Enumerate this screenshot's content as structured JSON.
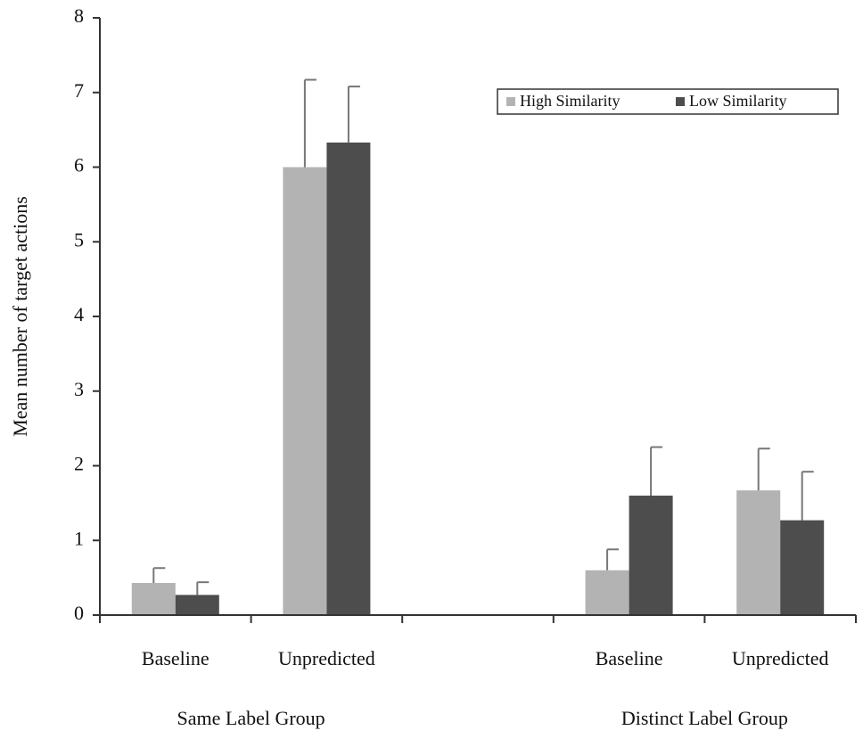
{
  "chart_data": {
    "type": "bar",
    "y_label": "Mean number of target actions",
    "categories": [
      "Baseline",
      "Unpredicted",
      null,
      "Baseline",
      "Unpredicted"
    ],
    "group_labels": [
      "Same Label Group",
      "Distinct Label Group"
    ],
    "series": [
      {
        "name": "High Similarity",
        "color": "#b3b3b3",
        "values": [
          0.43,
          6.0,
          null,
          0.6,
          1.67
        ],
        "errors": [
          0.2,
          1.17,
          null,
          0.28,
          0.56
        ]
      },
      {
        "name": "Low Similarity",
        "color": "#4d4d4d",
        "values": [
          0.27,
          6.33,
          null,
          1.6,
          1.27
        ],
        "errors": [
          0.17,
          0.75,
          null,
          0.65,
          0.65
        ]
      }
    ],
    "ylim": [
      0,
      8
    ],
    "yticks": [
      0,
      1,
      2,
      3,
      4,
      5,
      6,
      7,
      8
    ],
    "grid": false,
    "legend": "upper right"
  }
}
